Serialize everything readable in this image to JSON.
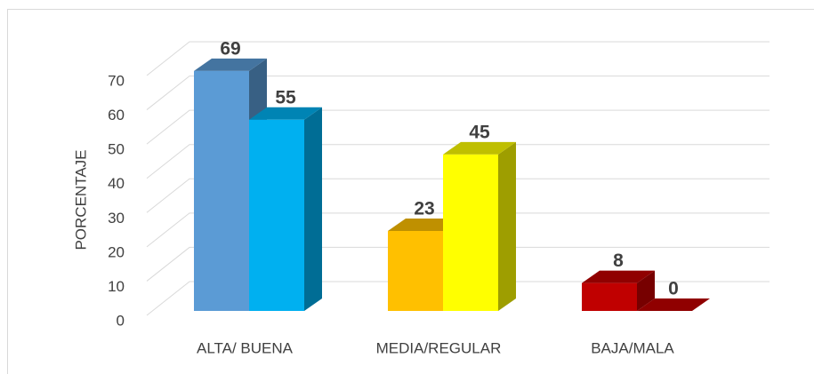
{
  "chart_data": {
    "type": "bar3d",
    "y_label": "PORCENTAJE",
    "categories": [
      "ALTA/ BUENA",
      "MEDIA/REGULAR",
      "BAJA/MALA"
    ],
    "series": [
      {
        "colors": [
          "#5b9bd5",
          "#ffc000",
          "#c00000"
        ],
        "values": [
          69,
          23,
          8
        ]
      },
      {
        "colors": [
          "#00b0f0",
          "#ffff00",
          "#c00000"
        ],
        "values": [
          55,
          45,
          0
        ]
      }
    ],
    "ylim": [
      0,
      70
    ],
    "yticks": [
      0,
      10,
      20,
      30,
      40,
      50,
      60,
      70
    ],
    "grid": true
  }
}
